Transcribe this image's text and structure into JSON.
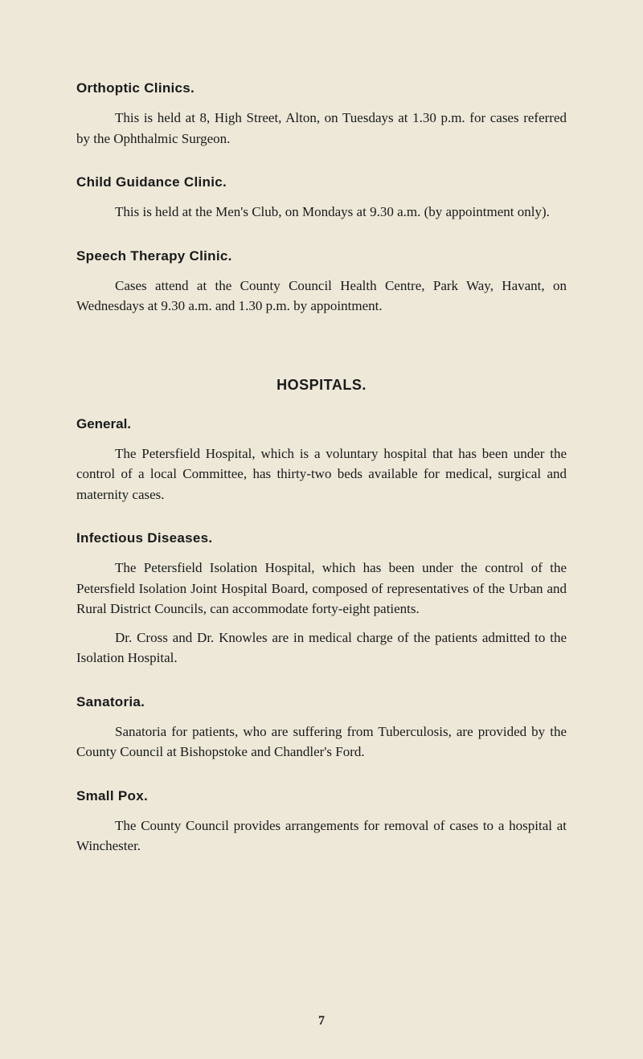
{
  "document": {
    "background_color": "#ede8d8",
    "text_color": "#1a1a1a",
    "heading_font": "Arial, Helvetica, sans-serif",
    "body_font": "Georgia, Times New Roman, serif",
    "body_fontsize": 17,
    "heading_fontsize": 17,
    "main_heading_fontsize": 18
  },
  "sections": {
    "orthoptic": {
      "heading": "Orthoptic Clinics.",
      "body": "This is held at 8, High Street, Alton, on Tuesdays at 1.30 p.m. for cases referred by the Ophthalmic Surgeon."
    },
    "child_guidance": {
      "heading": "Child Guidance Clinic.",
      "body": "This is held at the Men's Club, on Mondays at 9.30 a.m. (by appointment only)."
    },
    "speech_therapy": {
      "heading": "Speech Therapy Clinic.",
      "body": "Cases attend at the County Council Health Centre, Park Way, Havant, on Wednesdays at 9.30 a.m. and 1.30 p.m. by appointment."
    },
    "hospitals_heading": "HOSPITALS.",
    "general": {
      "label": "General.",
      "body": "The Petersfield Hospital, which is a voluntary hospital that has been under the control of a local Committee, has thirty-two beds available for medical, surgical and maternity cases."
    },
    "infectious": {
      "heading": "Infectious Diseases.",
      "body1": "The Petersfield Isolation Hospital, which has been under the control of the Petersfield Isolation Joint Hospital Board, composed of representatives of the Urban and Rural District Councils, can accommodate forty-eight patients.",
      "body2": "Dr. Cross and Dr. Knowles are in medical charge of the patients admitted to the Isolation Hospital."
    },
    "sanatoria": {
      "heading": "Sanatoria.",
      "body": "Sanatoria for patients, who are suffering from Tuberculosis, are provided by the County Council at Bishopstoke and Chandler's Ford."
    },
    "smallpox": {
      "heading": "Small Pox.",
      "body": "The County Council provides arrangements for removal of cases to a hospital at Winchester."
    }
  },
  "page_number": "7"
}
